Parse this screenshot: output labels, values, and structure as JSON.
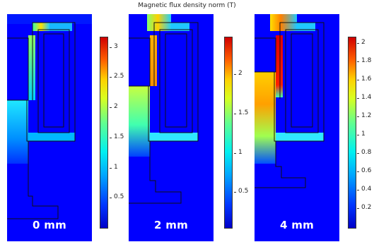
{
  "figure": {
    "title": "Magnetic flux density norm (T)"
  },
  "panels": [
    {
      "id": "p0",
      "label": "0 mm",
      "colorbar": {
        "ticks": [
          "3",
          "2.5",
          "2",
          "1.5",
          "1",
          "0.5"
        ],
        "max": 3.25
      }
    },
    {
      "id": "p1",
      "label": "2 mm",
      "colorbar": {
        "ticks": [
          "2",
          "1.5",
          "1",
          "0.5"
        ],
        "max": 2.45
      }
    },
    {
      "id": "p2",
      "label": "4 mm",
      "colorbar": {
        "ticks": [
          "2",
          "1.8",
          "1.6",
          "1.4",
          "1.2",
          "1",
          "0.8",
          "0.6",
          "0.4",
          "0.2"
        ],
        "max": 2.08
      }
    }
  ],
  "colors": {
    "background_field": "#0000ff",
    "colormap": [
      "#0000c8",
      "#00a8ff",
      "#00f0f0",
      "#d8ff20",
      "#ffd000",
      "#ff6000",
      "#d00000"
    ]
  }
}
